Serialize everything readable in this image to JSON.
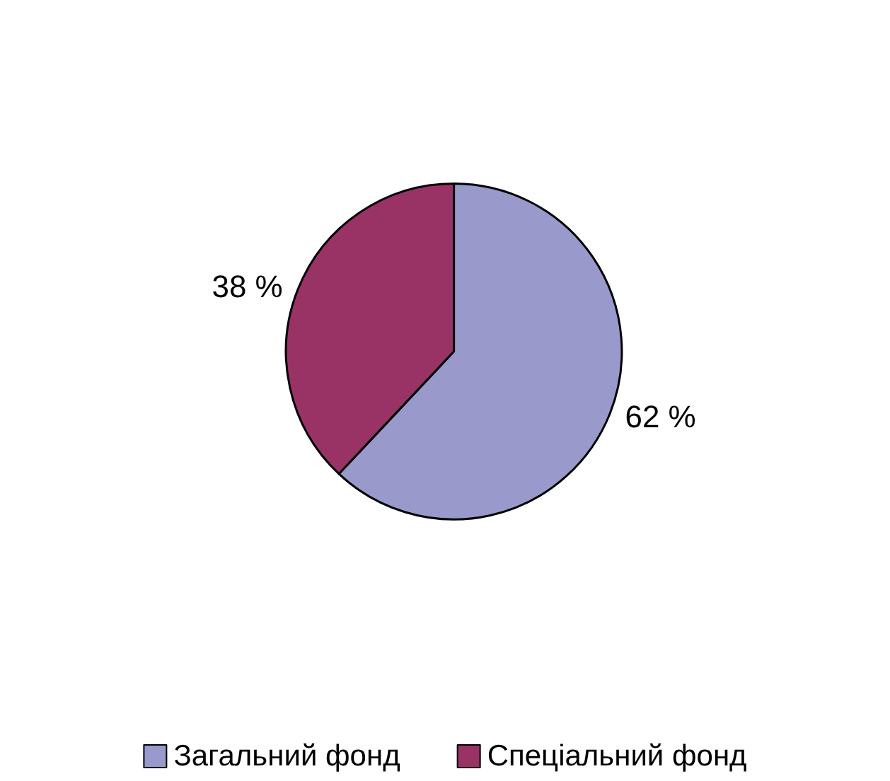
{
  "chart_data": {
    "type": "pie",
    "categories": [
      "Загальний фонд",
      "Спеціальний фонд"
    ],
    "values": [
      62,
      38
    ],
    "colors": [
      "#9999cc",
      "#993366"
    ],
    "value_labels": [
      "62 %",
      "38 %"
    ],
    "legend": "bottom"
  }
}
